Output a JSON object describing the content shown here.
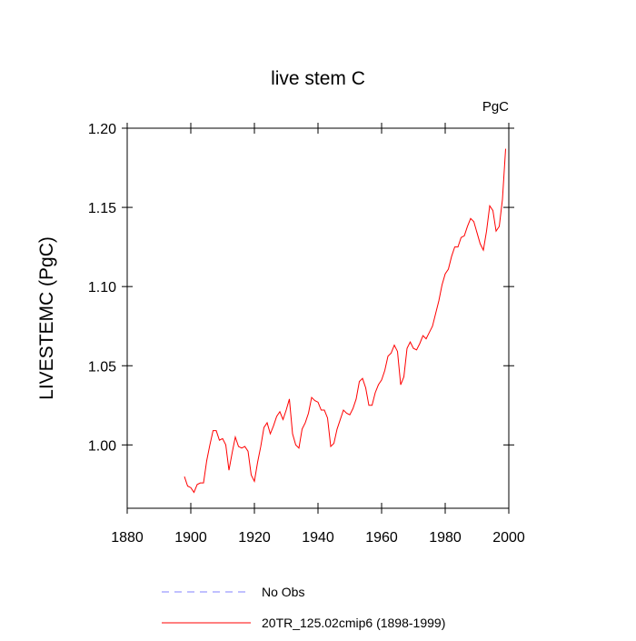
{
  "chart_data": {
    "type": "line",
    "title": "live stem C",
    "units": "PgC",
    "y_label": "LIVESTEMC  (PgC)",
    "xlim": [
      1880,
      2000
    ],
    "xticks": [
      1880,
      1900,
      1920,
      1940,
      1960,
      1980,
      2000
    ],
    "ylim": [
      0.96,
      1.2
    ],
    "yticks": [
      {
        "value": 1,
        "label": "1.00"
      },
      1.05,
      {
        "value": 1.1,
        "label": "1.10"
      },
      1.15,
      {
        "value": 1.2,
        "label": "1.20"
      }
    ],
    "x": [
      1898,
      1899,
      1900,
      1901,
      1902,
      1903,
      1904,
      1905,
      1906,
      1907,
      1908,
      1909,
      1910,
      1911,
      1912,
      1913,
      1914,
      1915,
      1916,
      1917,
      1918,
      1919,
      1920,
      1921,
      1922,
      1923,
      1924,
      1925,
      1926,
      1927,
      1928,
      1929,
      1930,
      1931,
      1932,
      1933,
      1934,
      1935,
      1936,
      1937,
      1938,
      1939,
      1940,
      1941,
      1942,
      1943,
      1944,
      1945,
      1946,
      1947,
      1948,
      1949,
      1950,
      1951,
      1952,
      1953,
      1954,
      1955,
      1956,
      1957,
      1958,
      1959,
      1960,
      1961,
      1962,
      1963,
      1964,
      1965,
      1966,
      1967,
      1968,
      1969,
      1970,
      1971,
      1972,
      1973,
      1974,
      1975,
      1976,
      1977,
      1978,
      1979,
      1980,
      1981,
      1982,
      1983,
      1984,
      1985,
      1986,
      1987,
      1988,
      1989,
      1990,
      1991,
      1992,
      1993,
      1994,
      1995,
      1996,
      1997,
      1998,
      1999
    ],
    "series": [
      {
        "name": "No Obs",
        "color": "#8080ff",
        "dashed": true,
        "values": [
          null,
          null,
          null,
          null,
          null,
          null,
          null,
          null,
          null,
          null,
          null,
          null,
          null,
          null,
          null,
          null,
          null,
          null,
          null,
          null,
          null,
          null,
          null,
          null,
          null,
          null,
          null,
          null,
          null,
          null,
          null,
          null,
          null,
          null,
          null,
          null,
          null,
          null,
          null,
          null,
          null,
          null,
          null,
          null,
          null,
          null,
          null,
          null,
          null,
          null,
          null,
          null,
          null,
          null,
          null,
          null,
          null,
          null,
          null,
          null,
          null,
          null,
          null,
          null,
          null,
          null,
          null,
          null,
          null,
          null,
          null,
          null,
          null,
          null,
          null,
          null,
          null,
          null,
          null,
          null,
          null,
          null,
          null,
          null,
          null,
          null,
          null,
          null,
          null,
          null,
          null,
          null,
          null,
          null,
          null,
          null,
          null,
          null,
          null,
          null,
          null,
          null
        ]
      },
      {
        "name": "20TR_125.02cmip6 (1898-1999)",
        "color": "#ff0000",
        "dashed": false,
        "values": [
          0.98,
          0.974,
          0.973,
          0.97,
          0.975,
          0.976,
          0.976,
          0.99,
          1.0,
          1.009,
          1.009,
          1.003,
          1.004,
          1.0,
          0.984,
          0.995,
          1.005,
          0.999,
          0.998,
          0.999,
          0.996,
          0.981,
          0.977,
          0.989,
          0.999,
          1.011,
          1.014,
          1.007,
          1.012,
          1.018,
          1.021,
          1.016,
          1.022,
          1.029,
          1.007,
          1.0,
          0.998,
          1.01,
          1.014,
          1.02,
          1.03,
          1.028,
          1.027,
          1.022,
          1.022,
          1.017,
          0.999,
          1.001,
          1.01,
          1.016,
          1.022,
          1.02,
          1.019,
          1.023,
          1.029,
          1.04,
          1.042,
          1.036,
          1.025,
          1.025,
          1.033,
          1.038,
          1.041,
          1.047,
          1.056,
          1.058,
          1.063,
          1.059,
          1.038,
          1.043,
          1.061,
          1.065,
          1.061,
          1.06,
          1.064,
          1.069,
          1.067,
          1.071,
          1.075,
          1.083,
          1.091,
          1.101,
          1.108,
          1.111,
          1.119,
          1.125,
          1.125,
          1.131,
          1.132,
          1.138,
          1.143,
          1.141,
          1.134,
          1.127,
          1.123,
          1.135,
          1.151,
          1.148,
          1.135,
          1.138,
          1.155,
          1.187
        ]
      }
    ]
  }
}
